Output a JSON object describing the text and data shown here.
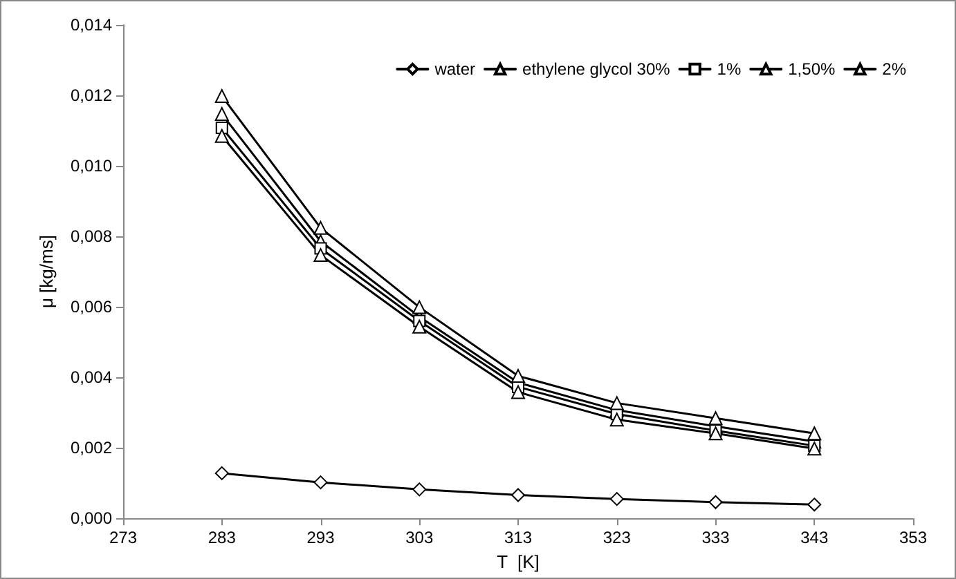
{
  "chart_data": {
    "type": "line",
    "xlabel": "T  [K]",
    "ylabel": "μ [kg/ms]",
    "x": [
      283,
      293,
      303,
      313,
      323,
      333,
      343
    ],
    "xlim": [
      273,
      353
    ],
    "xticks": [
      273,
      283,
      293,
      303,
      313,
      323,
      333,
      343,
      353
    ],
    "ylim": [
      0,
      0.014
    ],
    "yticks": [
      {
        "value": 0,
        "label": "0,000"
      },
      {
        "value": 0.002,
        "label": "0,002"
      },
      {
        "value": 0.004,
        "label": "0,004"
      },
      {
        "value": 0.006,
        "label": "0,006"
      },
      {
        "value": 0.008,
        "label": "0,008"
      },
      {
        "value": 0.01,
        "label": "0,010"
      },
      {
        "value": 0.012,
        "label": "0,012"
      },
      {
        "value": 0.014,
        "label": "0,014"
      }
    ],
    "grid": false,
    "legend": "top right",
    "series": [
      {
        "name": "water",
        "color": "#000000",
        "marker": "diamond",
        "values": [
          0.00128,
          0.00102,
          0.00082,
          0.00066,
          0.00055,
          0.00046,
          0.00039
        ]
      },
      {
        "name": "ethylene glycol 30%",
        "color": "#000000",
        "marker": "triangle",
        "values": [
          0.01147,
          0.00786,
          0.00572,
          0.00385,
          0.00307,
          0.00261,
          0.00218
        ]
      },
      {
        "name": "1%",
        "color": "#000000",
        "marker": "square",
        "values": [
          0.01108,
          0.00766,
          0.0056,
          0.00373,
          0.00296,
          0.00249,
          0.00206
        ]
      },
      {
        "name": "1,50%",
        "color": "#000000",
        "marker": "triangle",
        "values": [
          0.01085,
          0.00747,
          0.00544,
          0.00358,
          0.0028,
          0.00241,
          0.00198
        ]
      },
      {
        "name": "2%",
        "color": "#000000",
        "marker": "triangle",
        "values": [
          0.01198,
          0.00824,
          0.00599,
          0.00404,
          0.00327,
          0.00284,
          0.00241
        ]
      }
    ]
  }
}
